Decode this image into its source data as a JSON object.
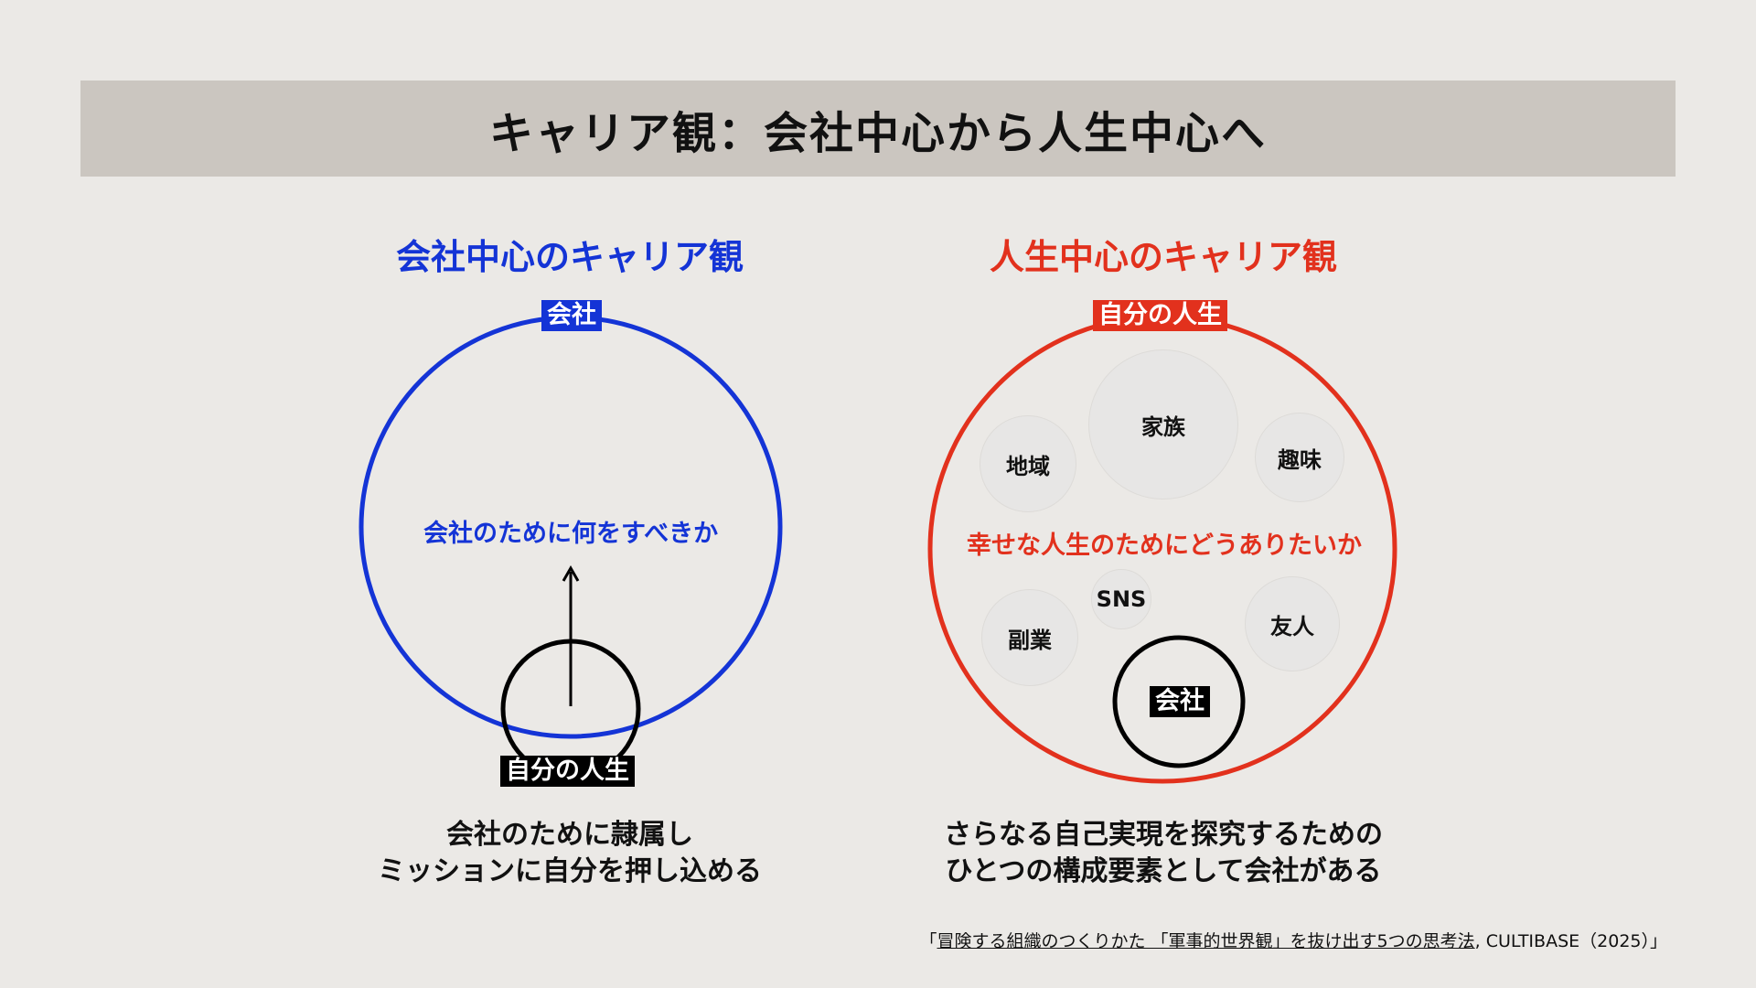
{
  "title": "キャリア観：会社中心から人生中心へ",
  "left": {
    "heading": "会社中心のキャリア観",
    "outer_label": "会社",
    "inner_text": "会社のために何をすべきか",
    "self_label": "自分の人生",
    "caption_line1": "会社のために隷属し",
    "caption_line2": "ミッションに自分を押し込める",
    "color": "#1434d6"
  },
  "right": {
    "heading": "人生中心のキャリア観",
    "outer_label": "自分の人生",
    "inner_text": "幸せな人生のためにどうありたいか",
    "bubbles": [
      "家族",
      "地域",
      "趣味",
      "SNS",
      "副業",
      "友人"
    ],
    "company_label": "会社",
    "caption_line1": "さらなる自己実現を探究するための",
    "caption_line2": "ひとつの構成要素として会社がある",
    "color": "#e2311d"
  },
  "citation": {
    "open": "「",
    "underlined": "冒険する組織のつくりかた 「軍事的世界観」を抜け出す5つの思考法",
    "rest": ", CULTIBASE（2025）」"
  }
}
